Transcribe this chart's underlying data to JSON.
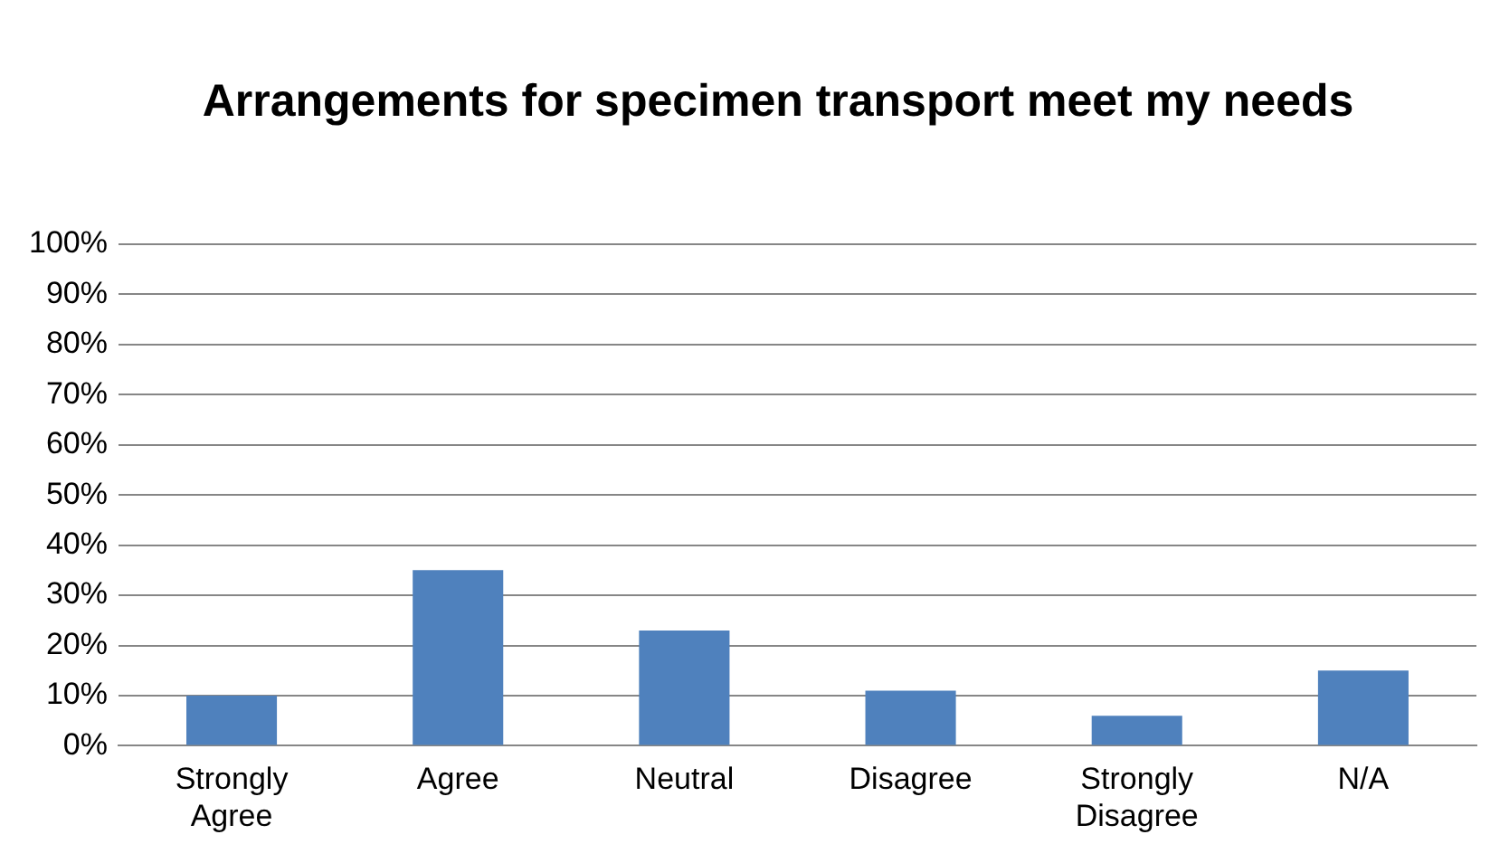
{
  "chart_data": {
    "type": "bar",
    "title": "Arrangements for specimen transport meet my needs",
    "categories": [
      "Strongly Agree",
      "Agree",
      "Neutral",
      "Disagree",
      "Strongly Disagree",
      "N/A"
    ],
    "values": [
      10,
      35,
      23,
      11,
      6,
      15
    ],
    "color": "#4f81bd",
    "ylim": [
      0,
      100
    ],
    "yticks": [
      {
        "value": 0,
        "label": "0%"
      },
      {
        "value": 10,
        "label": "10%"
      },
      {
        "value": 20,
        "label": "20%"
      },
      {
        "value": 30,
        "label": "30%"
      },
      {
        "value": 40,
        "label": "40%"
      },
      {
        "value": 50,
        "label": "50%"
      },
      {
        "value": 60,
        "label": "60%"
      },
      {
        "value": 70,
        "label": "70%"
      },
      {
        "value": 80,
        "label": "80%"
      },
      {
        "value": 90,
        "label": "90%"
      },
      {
        "value": 100,
        "label": "100%"
      }
    ],
    "grid": "y",
    "legend": false
  }
}
